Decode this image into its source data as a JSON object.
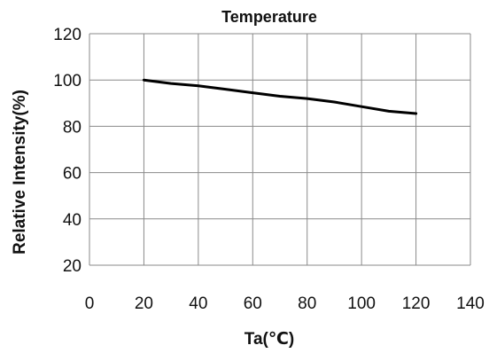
{
  "chart_data": {
    "type": "line",
    "title": "Temperature",
    "xlabel": "Ta(℃)",
    "ylabel": "Relative Intensity(%)",
    "xlim": [
      0,
      140
    ],
    "ylim": [
      20,
      120
    ],
    "xticks": [
      0,
      20,
      40,
      60,
      80,
      100,
      120,
      140
    ],
    "yticks": [
      20,
      40,
      60,
      80,
      100,
      120
    ],
    "grid": true,
    "legend": "none",
    "series": [
      {
        "color": "#000000",
        "x": [
          20,
          30,
          40,
          50,
          60,
          70,
          80,
          90,
          100,
          110,
          120
        ],
        "y": [
          100,
          98.5,
          97.5,
          96,
          94.5,
          93,
          92,
          90.5,
          88.5,
          86.5,
          85.5
        ]
      }
    ]
  }
}
